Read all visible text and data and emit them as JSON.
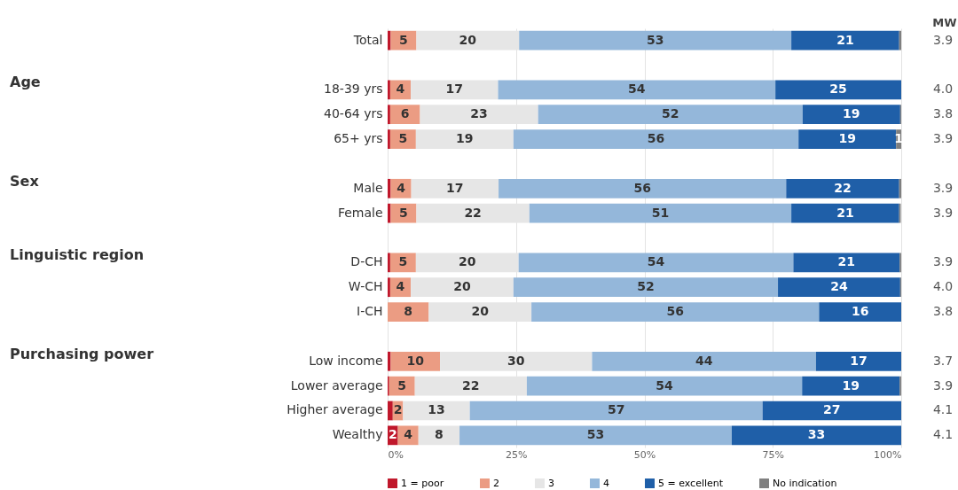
{
  "chart_data": {
    "type": "bar",
    "orientation": "horizontal",
    "stacked": true,
    "categories": [
      "Total",
      null,
      "18-39 yrs",
      "40-64 yrs",
      "65+ yrs",
      null,
      "Male",
      "Female",
      null,
      "D-CH",
      "W-CH",
      "I-CH",
      null,
      "Low income",
      "Lower average",
      "Higher average",
      "Wealthy"
    ],
    "series": [
      {
        "name": "1 = poor",
        "color": "#c0172b",
        "values": [
          0.6,
          null,
          0.5,
          0.5,
          0.5,
          null,
          0.6,
          0.6,
          null,
          0.5,
          0.5,
          0,
          null,
          0.6,
          0.3,
          1,
          2
        ],
        "value_labels": [
          null,
          null,
          null,
          null,
          null,
          null,
          null,
          null,
          null,
          null,
          null,
          null,
          null,
          null,
          null,
          null,
          "2"
        ]
      },
      {
        "name": "2",
        "color": "#eb9c83",
        "values": [
          5,
          null,
          4,
          5.8,
          5,
          null,
          4,
          5,
          null,
          5,
          4,
          8,
          null,
          9.6,
          5,
          2,
          4
        ],
        "value_labels": [
          "5",
          null,
          "4",
          "6",
          "5",
          null,
          "4",
          "5",
          null,
          "5",
          "4",
          "8",
          null,
          "10",
          "5",
          "2",
          "4"
        ]
      },
      {
        "name": "3",
        "color": "#e6e6e6",
        "values": [
          20,
          null,
          17,
          23,
          19,
          null,
          17,
          22,
          null,
          20,
          20,
          20,
          null,
          29.6,
          21.8,
          13,
          8
        ],
        "value_labels": [
          "20",
          null,
          "17",
          "23",
          "19",
          null,
          "17",
          "22",
          null,
          "20",
          "20",
          "20",
          null,
          "30",
          "22",
          "13",
          "8"
        ]
      },
      {
        "name": "4",
        "color": "#94b7da",
        "values": [
          53,
          null,
          54,
          51.5,
          55.5,
          null,
          56,
          51,
          null,
          53.5,
          51.5,
          56,
          null,
          43.6,
          53.6,
          57,
          53
        ],
        "value_labels": [
          "53",
          null,
          "54",
          "52",
          "56",
          null,
          "56",
          "51",
          null,
          "54",
          "52",
          "56",
          null,
          "44",
          "54",
          "57",
          "53"
        ]
      },
      {
        "name": "5 = excellent",
        "color": "#1f5fa8",
        "values": [
          21,
          null,
          24.5,
          19,
          19,
          null,
          22,
          21,
          null,
          20.7,
          23.8,
          16,
          null,
          16.6,
          19,
          27,
          33
        ],
        "value_labels": [
          "21",
          null,
          "25",
          "19",
          "19",
          null,
          "22",
          "21",
          null,
          "21",
          "24",
          "16",
          null,
          "17",
          "19",
          "27",
          "33"
        ]
      },
      {
        "name": "No indication",
        "color": "#7f7f7f",
        "values": [
          0.4,
          null,
          0,
          0.2,
          1,
          null,
          0.4,
          0.3,
          null,
          0.3,
          0.2,
          0,
          null,
          0,
          0.3,
          0,
          0
        ],
        "value_labels": [
          null,
          null,
          null,
          null,
          "1",
          null,
          null,
          null,
          null,
          null,
          null,
          null,
          null,
          null,
          null,
          null,
          null
        ]
      }
    ],
    "xlim": [
      0,
      100
    ],
    "xticks": [
      {
        "value": 0,
        "label": "0%"
      },
      {
        "value": 25,
        "label": "25%"
      },
      {
        "value": 50,
        "label": "50%"
      },
      {
        "value": 75,
        "label": "75%"
      },
      {
        "value": 100,
        "label": "100%"
      }
    ],
    "grid": "x",
    "legend": "bottom",
    "annotations": [
      "Age",
      "Sex",
      "Linguistic region",
      "Purchasing power",
      "MW",
      "3.9",
      "4.0",
      "3.8",
      "3.9",
      "3.9",
      "3.9",
      "3.9",
      "4.0",
      "3.8",
      "3.7",
      "3.9",
      "4.1",
      "4.1"
    ]
  }
}
